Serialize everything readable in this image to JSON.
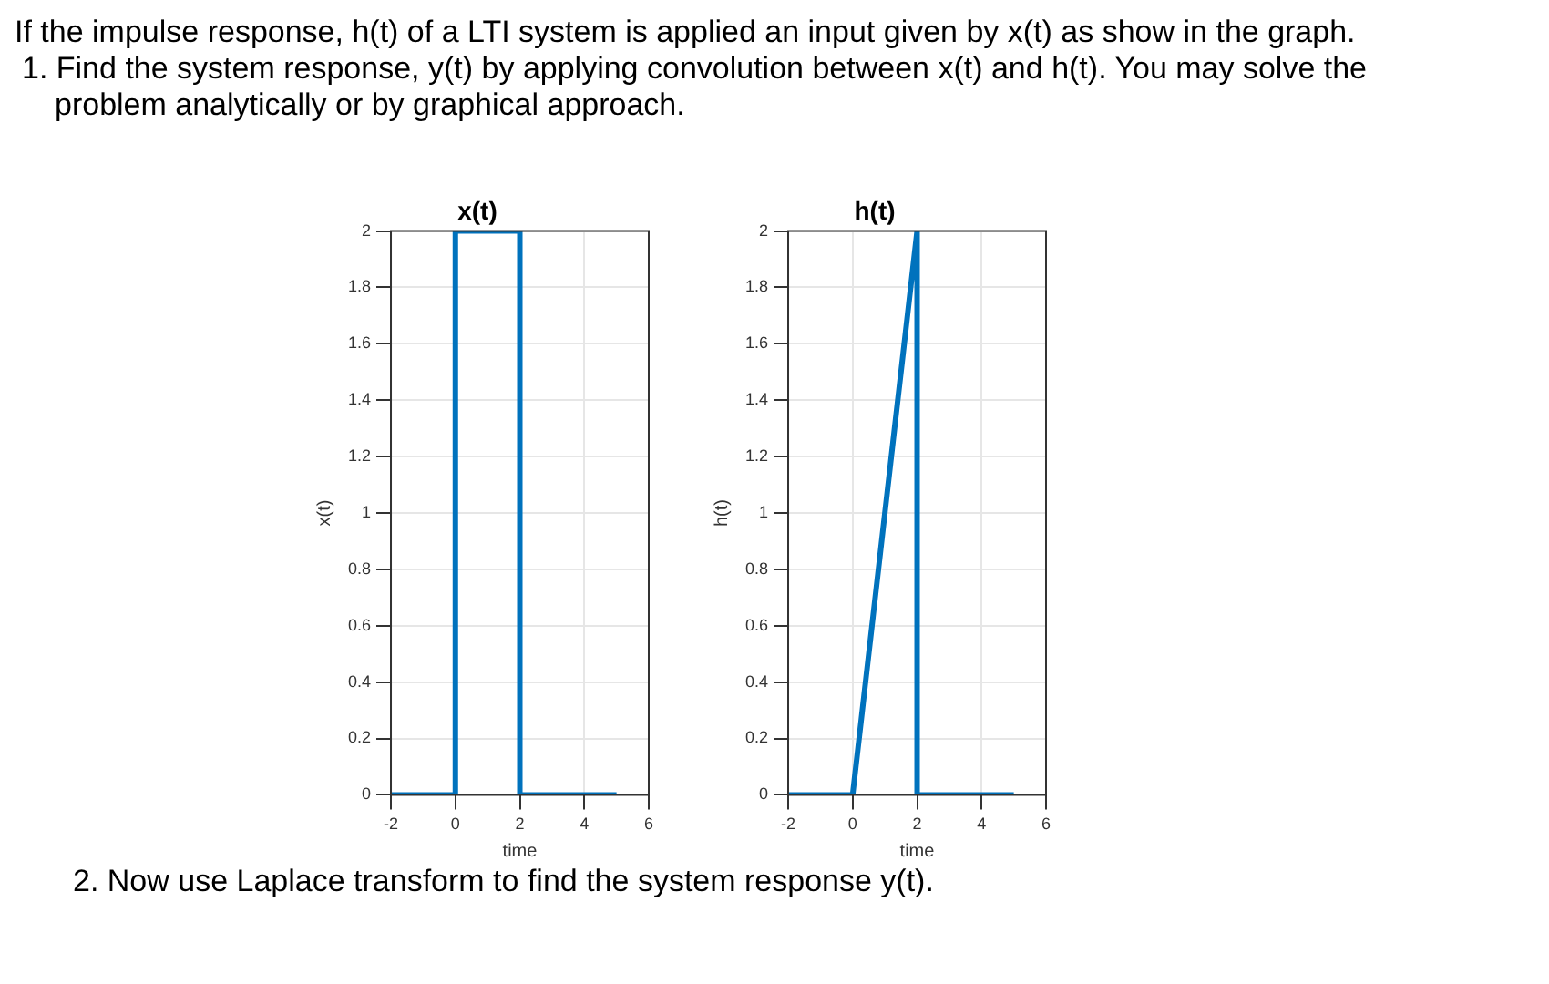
{
  "chart_data": [
    {
      "type": "line",
      "title": "x(t)",
      "xlabel": "time",
      "ylabel": "x(t)",
      "annotations": [
        "If the impulse response, h(t) of a LTI system is applied an input given by x(t) as show in the graph.",
        "1. Find the system response, y(t) by applying convolution between x(t) and h(t). You may solve the problem analytically or by graphical approach."
      ],
      "series": [
        {
          "color": "#0072bd",
          "x": [
            -2,
            0,
            0,
            2,
            2,
            5
          ],
          "values": [
            0,
            0,
            2,
            2,
            0,
            0
          ]
        }
      ],
      "xlim": [
        -2,
        6
      ],
      "xticks": [
        -2,
        0,
        2,
        4,
        6
      ],
      "ylim": [
        0,
        2
      ],
      "yticks": [
        0,
        0.2,
        0.4,
        0.6,
        0.8,
        1,
        1.2,
        1.4,
        1.6,
        1.8,
        2
      ],
      "grid": true,
      "marker": "none",
      "line_style": "solid"
    },
    {
      "type": "line",
      "title": "h(t)",
      "xlabel": "time",
      "ylabel": "h(t)",
      "annotations": [
        "2. Now use Laplace transform to find the system response y(t)."
      ],
      "series": [
        {
          "color": "#0072bd",
          "x": [
            -2,
            0,
            2,
            2,
            5
          ],
          "values": [
            0,
            0,
            2,
            0,
            0
          ]
        }
      ],
      "xlim": [
        -2,
        6
      ],
      "xticks": [
        -2,
        0,
        2,
        4,
        6
      ],
      "ylim": [
        0,
        2
      ],
      "yticks": [
        0,
        0.2,
        0.4,
        0.6,
        0.8,
        1,
        1.2,
        1.4,
        1.6,
        1.8,
        2
      ],
      "grid": true,
      "marker": "none",
      "line_style": "solid"
    }
  ]
}
